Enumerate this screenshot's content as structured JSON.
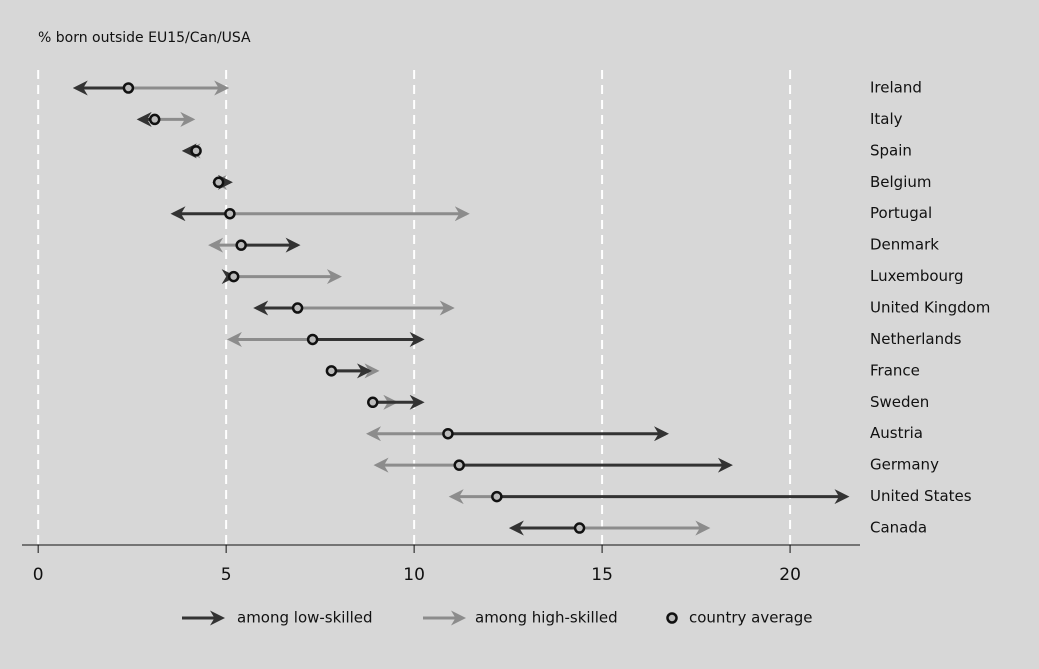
{
  "chart_data": {
    "type": "arrow-dot",
    "title": "% born outside EU15/Can/USA",
    "categories": [
      "Ireland",
      "Italy",
      "Spain",
      "Belgium",
      "Portugal",
      "Denmark",
      "Luxembourg",
      "United Kingdom",
      "Netherlands",
      "France",
      "Sweden",
      "Austria",
      "Germany",
      "United States",
      "Canada"
    ],
    "series": [
      {
        "name": "among low-skilled",
        "color": "#333333",
        "values": [
          1.0,
          2.7,
          3.9,
          5.1,
          3.6,
          6.9,
          5.2,
          5.8,
          10.2,
          8.8,
          10.2,
          16.7,
          18.4,
          21.5,
          12.6
        ]
      },
      {
        "name": "among high-skilled",
        "color": "#8c8c8c",
        "values": [
          5.0,
          4.1,
          4.0,
          4.7,
          11.4,
          4.6,
          8.0,
          11.0,
          5.1,
          9.0,
          9.5,
          8.8,
          9.0,
          11.0,
          17.8
        ]
      },
      {
        "name": "country average",
        "color": "#111111",
        "values": [
          2.4,
          3.1,
          4.2,
          4.8,
          5.1,
          5.4,
          5.2,
          6.9,
          7.3,
          7.8,
          8.9,
          10.9,
          11.2,
          12.2,
          14.4
        ]
      }
    ],
    "xlim": [
      -0.43,
      21.86
    ],
    "xticks": [
      0,
      5,
      10,
      15,
      20
    ],
    "grid": true
  }
}
